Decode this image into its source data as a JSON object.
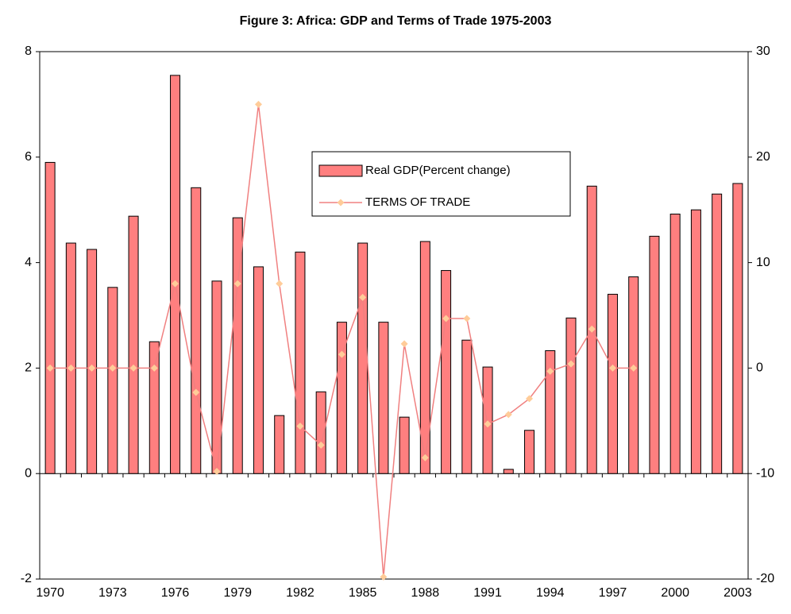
{
  "chart_data": {
    "type": "bar",
    "title": "Figure 3:  Africa: GDP and Terms of Trade 1975-2003",
    "categories": [
      "1970",
      null,
      null,
      "1973",
      null,
      null,
      "1976",
      null,
      null,
      "1979",
      null,
      null,
      "1982",
      null,
      null,
      "1985",
      null,
      null,
      "1988",
      null,
      null,
      "1991",
      null,
      null,
      "1994",
      null,
      null,
      "1997",
      null,
      null,
      "2000",
      null,
      null,
      "2003"
    ],
    "series": [
      {
        "name": "Real GDP(Percent change)",
        "type": "bar",
        "color": "#ff7f7f",
        "values": [
          5.9,
          4.37,
          4.25,
          3.53,
          4.88,
          2.5,
          7.55,
          5.42,
          3.65,
          4.85,
          3.92,
          1.1,
          4.2,
          1.55,
          2.87,
          4.37,
          2.87,
          1.07,
          4.4,
          3.85,
          2.53,
          2.02,
          0.08,
          0.82,
          2.33,
          2.95,
          5.45,
          3.4,
          3.73,
          4.5,
          4.92,
          5.0,
          5.3,
          5.5
        ]
      },
      {
        "name": "TERMS OF TRADE",
        "type": "line",
        "axis": "y2",
        "color": "#f08080",
        "marker_color": "#ffcc99",
        "values": [
          0,
          0,
          0,
          0,
          0,
          0,
          8,
          -2.3,
          -9.8,
          8,
          25,
          8,
          -5.5,
          -7.3,
          1.3,
          6.7,
          -19.8,
          2.3,
          -8.5,
          4.7,
          4.7,
          -5.3,
          -4.4,
          -2.9,
          -0.3,
          0.4,
          3.7,
          0,
          0,
          null,
          null,
          null,
          null,
          null
        ]
      }
    ],
    "ylim": [
      -2,
      8
    ],
    "yticks": [
      -2,
      0,
      2,
      4,
      6,
      8
    ],
    "y2lim": [
      -20,
      30
    ],
    "y2ticks": [
      -20,
      -10,
      0,
      10,
      20,
      30
    ],
    "grid": false
  }
}
